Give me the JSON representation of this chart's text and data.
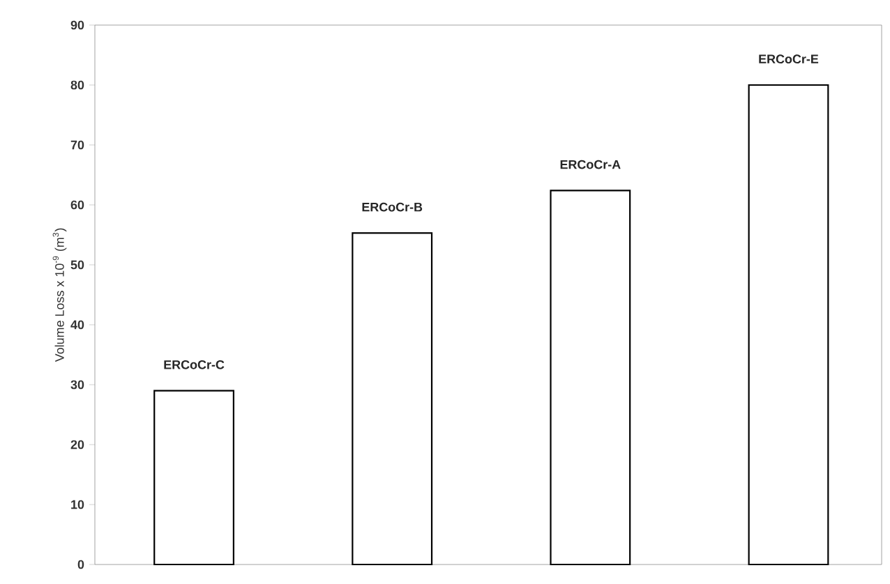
{
  "chart_data": {
    "type": "bar",
    "ylabel": "Volume Loss x 10$^{-9}$ (m$^{3}$)",
    "categories": [
      "ERCoCr-C",
      "ERCoCr-B",
      "ERCoCr-A",
      "ERCoCr-E"
    ],
    "values": [
      29,
      55.3,
      62.4,
      80
    ],
    "color": "#ffffff",
    "ylim": [
      0,
      90
    ],
    "yticks": [
      0,
      10,
      20,
      30,
      40,
      50,
      60,
      70,
      80,
      90
    ],
    "grid": false
  }
}
